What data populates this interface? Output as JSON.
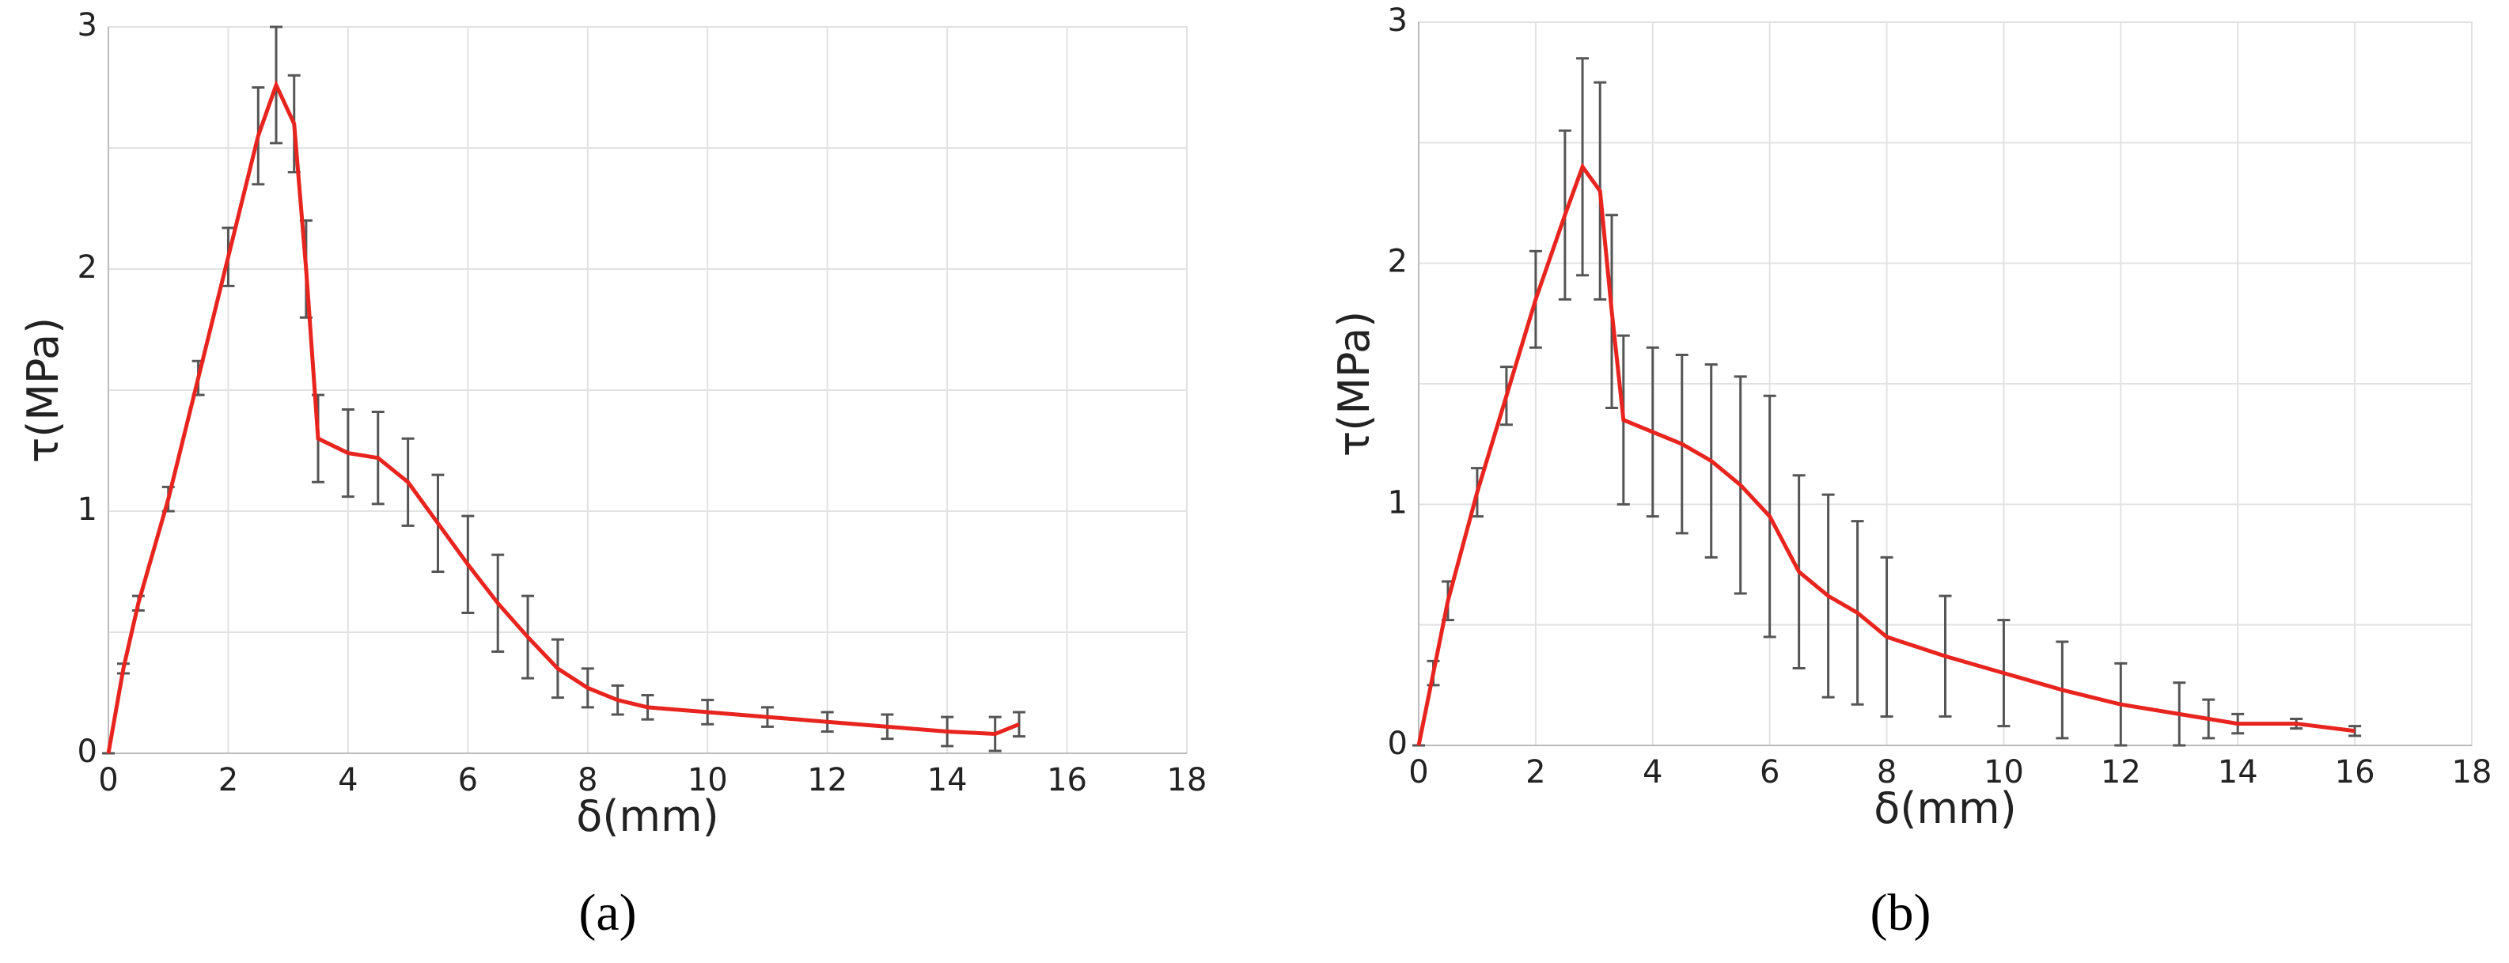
{
  "chart_data": [
    {
      "type": "errorline",
      "caption": "(a)",
      "ylabel": "τ(MPa)",
      "xlabel": "δ(mm)",
      "x": [
        0,
        0.25,
        0.5,
        1,
        1.5,
        2,
        2.5,
        2.8,
        3.1,
        3.3,
        3.5,
        4,
        4.5,
        5,
        5.5,
        6,
        6.5,
        7,
        7.5,
        8,
        8.5,
        9,
        10,
        11,
        12,
        13,
        14,
        14.8,
        15.2
      ],
      "series": [
        {
          "color": "#e8241f",
          "values": [
            0,
            0.35,
            0.62,
            1.05,
            1.55,
            2.05,
            2.55,
            2.76,
            2.6,
            2.0,
            1.3,
            1.24,
            1.22,
            1.12,
            0.95,
            0.78,
            0.62,
            0.48,
            0.35,
            0.27,
            0.22,
            0.19,
            0.17,
            0.15,
            0.13,
            0.11,
            0.09,
            0.08,
            0.12
          ],
          "errors": [
            0,
            0.02,
            0.03,
            0.05,
            0.07,
            0.12,
            0.2,
            0.24,
            0.2,
            0.2,
            0.18,
            0.18,
            0.19,
            0.18,
            0.2,
            0.2,
            0.2,
            0.17,
            0.12,
            0.08,
            0.06,
            0.05,
            0.05,
            0.04,
            0.04,
            0.05,
            0.06,
            0.07,
            0.05
          ]
        }
      ],
      "error_color": "#555555",
      "xlim": [
        0,
        18
      ],
      "xticks": [
        0,
        2,
        4,
        6,
        8,
        10,
        12,
        14,
        16,
        18
      ],
      "ylim": [
        0,
        3
      ],
      "yticks": [
        0,
        1,
        2,
        3
      ],
      "yminor": [
        0.5,
        1.5,
        2.5
      ],
      "grid": true
    },
    {
      "type": "errorline",
      "caption": "(b)",
      "ylabel": "τ(MPa)",
      "xlabel": "δ(mm)",
      "x": [
        0,
        0.25,
        0.5,
        1,
        1.5,
        2,
        2.5,
        2.8,
        3.1,
        3.3,
        3.5,
        4,
        4.5,
        5,
        5.5,
        6,
        6.5,
        7,
        7.5,
        8,
        9,
        10,
        11,
        12,
        13,
        13.5,
        14,
        15,
        16
      ],
      "series": [
        {
          "color": "#e8241f",
          "values": [
            0,
            0.3,
            0.6,
            1.05,
            1.45,
            1.85,
            2.2,
            2.4,
            2.3,
            1.8,
            1.35,
            1.3,
            1.25,
            1.18,
            1.08,
            0.95,
            0.72,
            0.62,
            0.55,
            0.45,
            0.37,
            0.3,
            0.23,
            0.17,
            0.13,
            0.11,
            0.09,
            0.09,
            0.06
          ],
          "errors": [
            0,
            0.05,
            0.08,
            0.1,
            0.12,
            0.2,
            0.35,
            0.45,
            0.45,
            0.4,
            0.35,
            0.35,
            0.37,
            0.4,
            0.45,
            0.5,
            0.4,
            0.42,
            0.38,
            0.33,
            0.25,
            0.22,
            0.2,
            0.17,
            0.13,
            0.08,
            0.04,
            0.02,
            0.02
          ]
        }
      ],
      "error_color": "#555555",
      "xlim": [
        0,
        18
      ],
      "xticks": [
        0,
        2,
        4,
        6,
        8,
        10,
        12,
        14,
        16,
        18
      ],
      "ylim": [
        0,
        3
      ],
      "yticks": [
        0,
        1,
        2,
        3
      ],
      "yminor": [
        0.5,
        1.5,
        2.5
      ],
      "grid": true
    }
  ]
}
